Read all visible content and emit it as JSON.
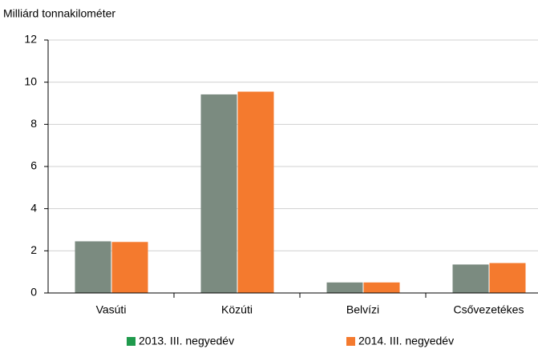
{
  "chart_data": {
    "type": "bar",
    "y_axis_label": "Milliárd tonnakilométer",
    "categories": [
      "Vasúti",
      "Közúti",
      "Belvízi",
      "Csővezetékes"
    ],
    "series": [
      {
        "name": "2013. III. negyedév",
        "color": "#7b8b80",
        "legend_color": "#1f9a4c",
        "values": [
          2.45,
          9.42,
          0.5,
          1.35
        ]
      },
      {
        "name": "2014. III. negyedév",
        "color": "#f47a2e",
        "legend_color": "#f47a2e",
        "values": [
          2.42,
          9.55,
          0.5,
          1.42
        ]
      }
    ],
    "ylim": [
      0,
      12
    ],
    "yticks": [
      0,
      2,
      4,
      6,
      8,
      10,
      12
    ],
    "grid": true
  }
}
